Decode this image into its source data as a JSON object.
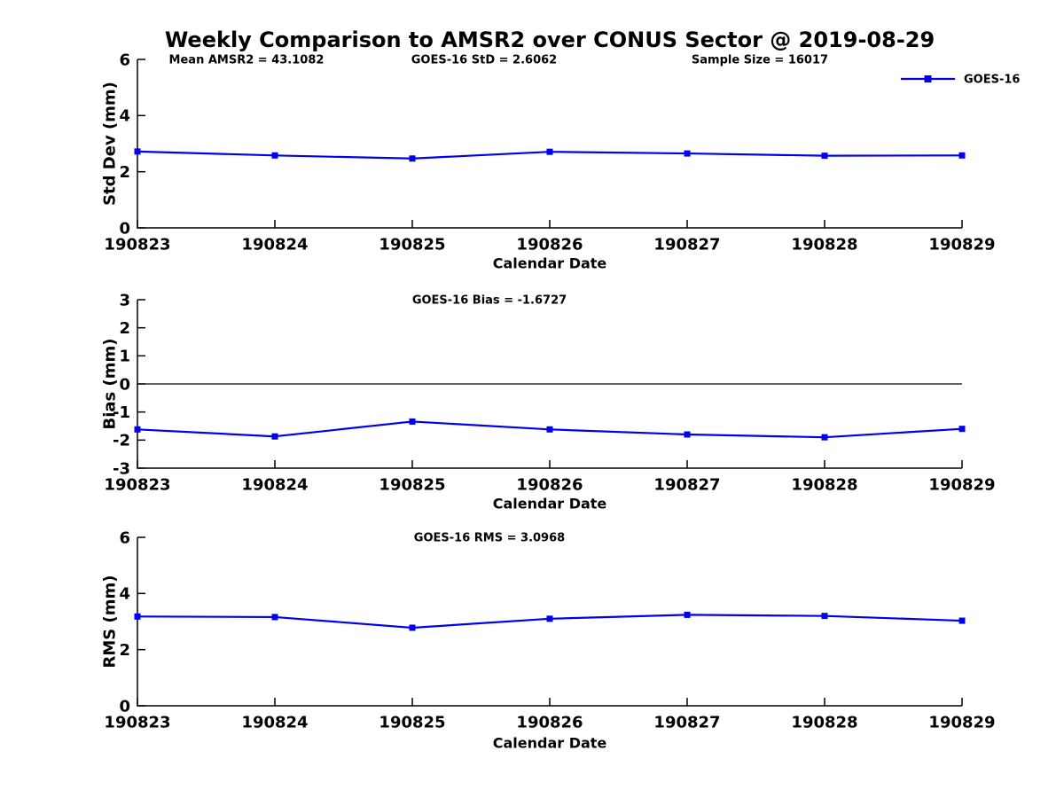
{
  "title": "Weekly Comparison to AMSR2 over CONUS Sector @ 2019-08-29",
  "colors": {
    "series": "#0000EE",
    "axis": "#000000",
    "text": "#000000",
    "zero_line": "#000000"
  },
  "chart_data": [
    {
      "type": "line",
      "id": "std-dev",
      "title_annotations": [
        {
          "text": "Mean AMSR2 = 43.1082",
          "x": 278
        },
        {
          "text": "GOES-16 StD = 2.6062",
          "x": 546
        },
        {
          "text": "Sample Size = 16017",
          "x": 857
        }
      ],
      "categories": [
        "190823",
        "190824",
        "190825",
        "190826",
        "190827",
        "190828",
        "190829"
      ],
      "series": [
        {
          "name": "GOES-16",
          "values": [
            2.72,
            2.58,
            2.47,
            2.71,
            2.65,
            2.57,
            2.58
          ]
        }
      ],
      "xlabel": "Calendar Date",
      "ylabel": "Std Dev (mm)",
      "ylim": [
        0,
        6
      ],
      "yticks": [
        0,
        2,
        4,
        6
      ],
      "zero_line": false,
      "grid": false,
      "legend": {
        "label": "GOES-16",
        "position": "top-right"
      }
    },
    {
      "type": "line",
      "id": "bias",
      "title_annotations": [
        {
          "text": "GOES-16 Bias  = -1.6727",
          "x": 552
        }
      ],
      "categories": [
        "190823",
        "190824",
        "190825",
        "190826",
        "190827",
        "190828",
        "190829"
      ],
      "series": [
        {
          "name": "GOES-16",
          "values": [
            -1.62,
            -1.87,
            -1.34,
            -1.62,
            -1.8,
            -1.9,
            -1.6
          ]
        }
      ],
      "xlabel": "Calendar Date",
      "ylabel": "Bias (mm)",
      "ylim": [
        -3,
        3
      ],
      "yticks": [
        -3,
        -2,
        -1,
        0,
        1,
        2,
        3
      ],
      "zero_line": true,
      "grid": false
    },
    {
      "type": "line",
      "id": "rms",
      "title_annotations": [
        {
          "text": "GOES-16 RMS = 3.0968",
          "x": 552
        }
      ],
      "categories": [
        "190823",
        "190824",
        "190825",
        "190826",
        "190827",
        "190828",
        "190829"
      ],
      "series": [
        {
          "name": "GOES-16",
          "values": [
            3.18,
            3.16,
            2.78,
            3.1,
            3.24,
            3.2,
            3.03
          ]
        }
      ],
      "xlabel": "Calendar Date",
      "ylabel": "RMS (mm)",
      "ylim": [
        0,
        6
      ],
      "yticks": [
        0,
        2,
        4,
        6
      ],
      "zero_line": false,
      "grid": false
    }
  ]
}
